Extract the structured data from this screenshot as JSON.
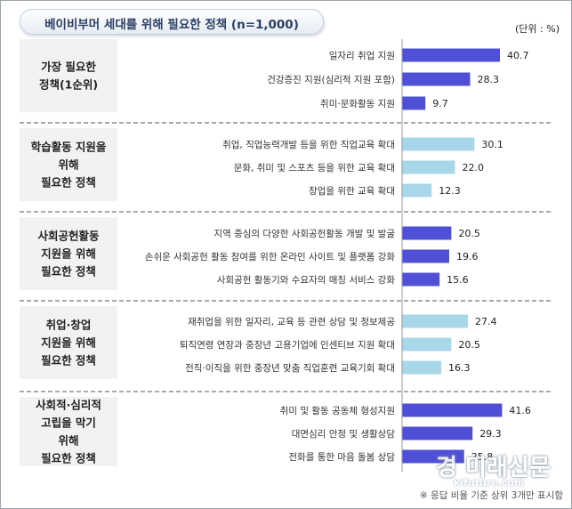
{
  "title": "베이비부머 세대를 위해 필요한 정책 (n=1,000)",
  "unit": "(단위 : %)",
  "footnote": "※ 응답 비율 기준 상위 3개만 표시함",
  "watermark": {
    "main": "경 미래신문",
    "sub": "kifuture.com"
  },
  "colors": {
    "dark_bar": "#5050d6",
    "light_bar": "#a9d7ea",
    "box_fill": "#f2f2f2"
  },
  "chart_data": {
    "type": "bar",
    "orientation": "horizontal",
    "xlim": [
      0,
      45
    ],
    "groups": [
      {
        "label_lines": [
          "가장 필요한",
          "정책(1순위)"
        ],
        "color": "#5050d6",
        "categories": [
          "일자리 취업 지원",
          "건강증진 지원(심리적 지원 포함)",
          "취미·문화활동 지원"
        ],
        "values": [
          40.7,
          28.3,
          9.7
        ]
      },
      {
        "label_lines": [
          "학습활동 지원을",
          "위해",
          "필요한 정책"
        ],
        "color": "#a9d7ea",
        "categories": [
          "취업, 직업능력개발 등을 위한 직업교육 확대",
          "문화, 취미 및 스포츠 등을 위한 교육 확대",
          "창업을 위한 교육 확대"
        ],
        "values": [
          30.1,
          22.0,
          12.3
        ]
      },
      {
        "label_lines": [
          "사회공헌활동",
          "지원을 위해",
          "필요한 정책"
        ],
        "color": "#5050d6",
        "categories": [
          "지역 중심의 다양한 사회공헌활동 개발 및 발굴",
          "손쉬운 사회공헌 활동 참여를 위한 온라인 사이트 및 플랫폼 강화",
          "사회공헌 활동기와 수요자의 매칭 서비스 강화"
        ],
        "values": [
          20.5,
          19.6,
          15.6
        ]
      },
      {
        "label_lines": [
          "취업·창업",
          "지원을 위해",
          "필요한 정책"
        ],
        "color": "#a9d7ea",
        "categories": [
          "재취업을 위한 일자리, 교육 등 관련 상담 및 정보제공",
          "퇴직연령 연장과 중장년 고용기업에 인센티브 지원 확대",
          "전직·이직을 위한 중장년 맞춤 직업훈련 교육기회 확대"
        ],
        "values": [
          27.4,
          20.5,
          16.3
        ]
      },
      {
        "label_lines": [
          "사회적·심리적",
          "고립을 막기",
          "위해",
          "필요한 정책"
        ],
        "color": "#5050d6",
        "categories": [
          "취미 및 활동 공동체 형성지원",
          "대면심리 안정 및 생활상담",
          "전화를 통한 마음 돌봄 상담"
        ],
        "values": [
          41.6,
          29.3,
          25.8
        ]
      }
    ]
  }
}
